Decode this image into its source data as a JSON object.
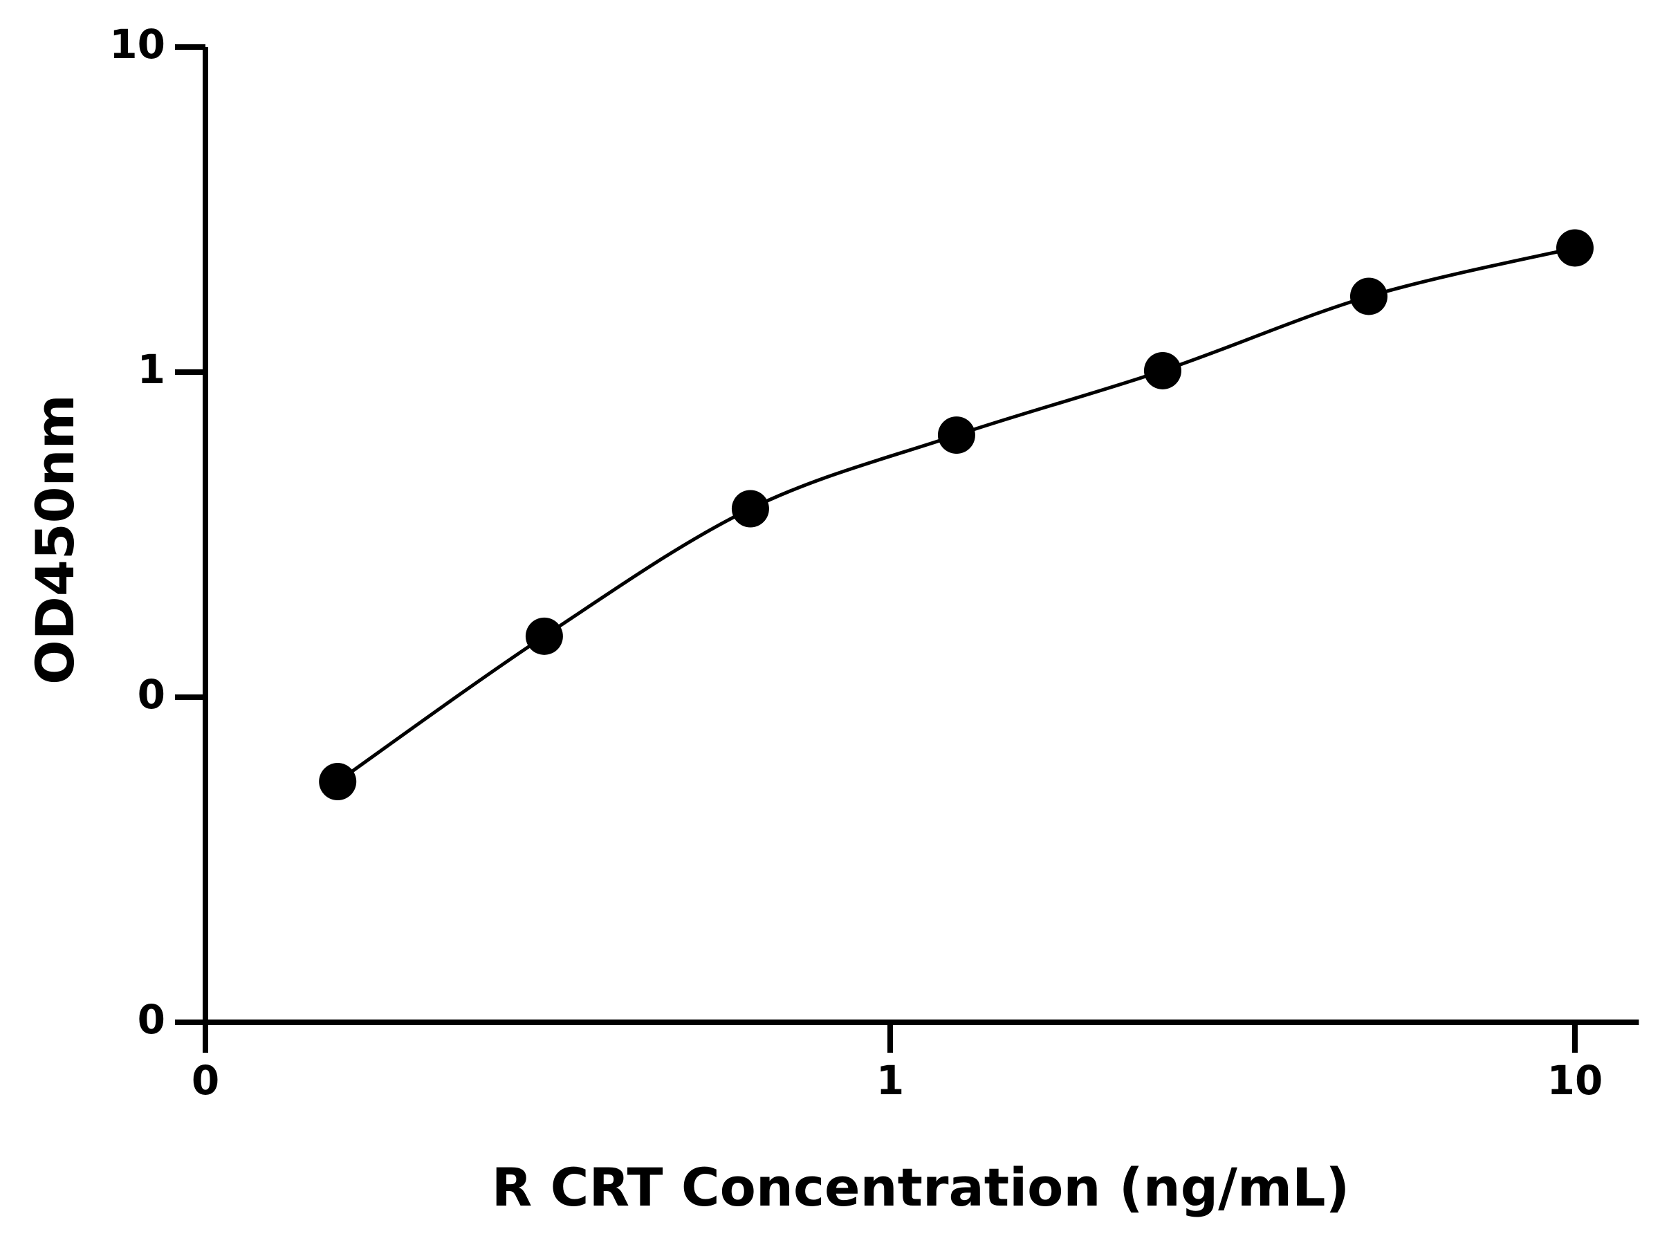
{
  "chart_data": {
    "type": "scatter",
    "x_label": "R CRT Concentration (ng/mL)",
    "y_label": "OD450nm",
    "x": [
      0.156,
      0.3125,
      0.625,
      1.25,
      2.5,
      5,
      10
    ],
    "values": [
      0.055,
      0.154,
      0.38,
      0.64,
      1.01,
      1.71,
      2.41
    ],
    "color": "#000000",
    "fit_line": true,
    "x_log": true,
    "y_log": true,
    "xlim": [
      0.1,
      12.4
    ],
    "ylim": [
      0.01,
      10
    ],
    "xticks": [
      {
        "value": 0.1,
        "label": "0"
      },
      1,
      10
    ],
    "yticks": [
      {
        "value": 0.01,
        "label": "0"
      },
      {
        "value": 0.1,
        "label": "0"
      },
      1,
      10
    ]
  }
}
